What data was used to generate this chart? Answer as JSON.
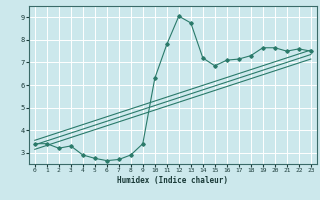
{
  "xlabel": "Humidex (Indice chaleur)",
  "bg_color": "#cce8ec",
  "grid_color": "#ffffff",
  "line_color": "#2a7a6a",
  "xlim": [
    -0.5,
    23.5
  ],
  "ylim": [
    2.5,
    9.5
  ],
  "xticks": [
    0,
    1,
    2,
    3,
    4,
    5,
    6,
    7,
    8,
    9,
    10,
    11,
    12,
    13,
    14,
    15,
    16,
    17,
    18,
    19,
    20,
    21,
    22,
    23
  ],
  "yticks": [
    3,
    4,
    5,
    6,
    7,
    8,
    9
  ],
  "curve_x": [
    0,
    1,
    2,
    3,
    4,
    5,
    6,
    7,
    8,
    9,
    10,
    11,
    12,
    13,
    14,
    15,
    16,
    17,
    18,
    19,
    20,
    21,
    22,
    23
  ],
  "curve_y": [
    3.4,
    3.4,
    3.2,
    3.3,
    2.9,
    2.75,
    2.65,
    2.7,
    2.9,
    3.4,
    6.3,
    7.8,
    9.05,
    8.75,
    7.2,
    6.85,
    7.1,
    7.15,
    7.3,
    7.65,
    7.65,
    7.5,
    7.6,
    7.5
  ],
  "line2_x": [
    0,
    23
  ],
  "line2_y": [
    3.55,
    7.55
  ],
  "line3_x": [
    0,
    23
  ],
  "line3_y": [
    3.35,
    7.35
  ],
  "line4_x": [
    0,
    23
  ],
  "line4_y": [
    3.15,
    7.15
  ]
}
